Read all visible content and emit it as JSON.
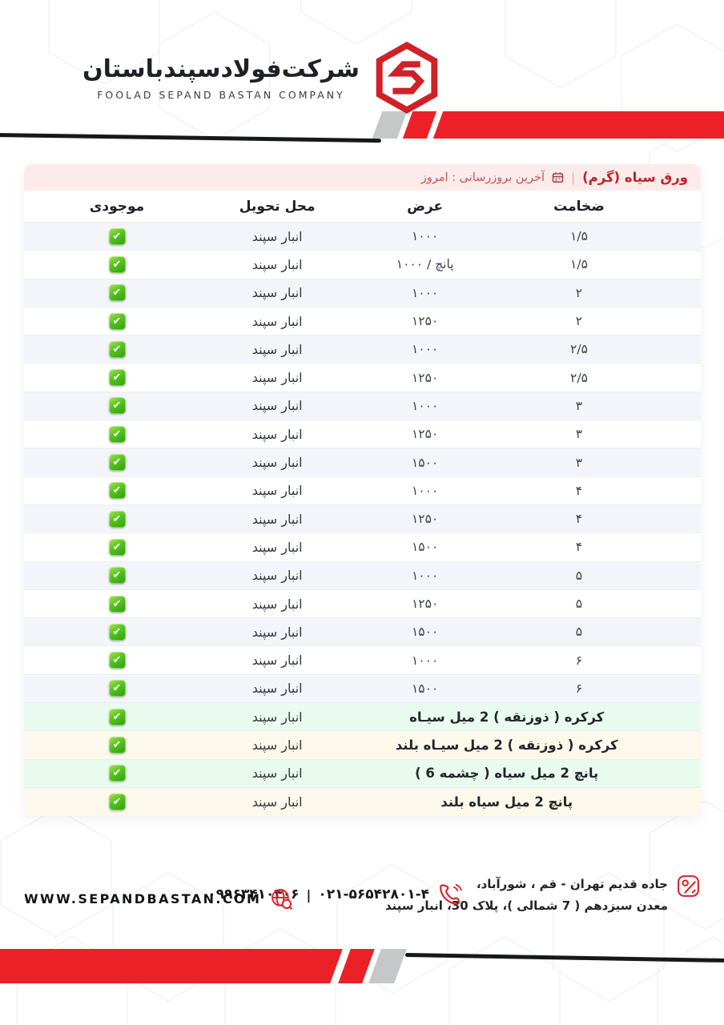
{
  "brand": {
    "company_name_fa": "شرکت‌فولادسپندباستان",
    "company_name_en": "FOOLAD SEPAND BASTAN COMPANY"
  },
  "price_table": {
    "title": "ورق سیاه (گرم)",
    "divider": "|",
    "last_update": "آخرین بروزرسانی : امروز",
    "columns": {
      "thickness": "ضخامت",
      "width": "عرض",
      "delivery": "محل تحویل",
      "stock": "موجودی"
    },
    "check_glyph": "✔",
    "rows": [
      {
        "thickness": "۱/۵",
        "width": "۱۰۰۰",
        "delivery": "انبار سپند",
        "in_stock": true
      },
      {
        "thickness": "۱/۵",
        "width": "پانچ / ۱۰۰۰",
        "delivery": "انبار سپند",
        "in_stock": true
      },
      {
        "thickness": "۲",
        "width": "۱۰۰۰",
        "delivery": "انبار سپند",
        "in_stock": true
      },
      {
        "thickness": "۲",
        "width": "۱۲۵۰",
        "delivery": "انبار سپند",
        "in_stock": true
      },
      {
        "thickness": "۲/۵",
        "width": "۱۰۰۰",
        "delivery": "انبار سپند",
        "in_stock": true
      },
      {
        "thickness": "۲/۵",
        "width": "۱۲۵۰",
        "delivery": "انبار سپند",
        "in_stock": true
      },
      {
        "thickness": "۳",
        "width": "۱۰۰۰",
        "delivery": "انبار سپند",
        "in_stock": true
      },
      {
        "thickness": "۳",
        "width": "۱۲۵۰",
        "delivery": "انبار سپند",
        "in_stock": true
      },
      {
        "thickness": "۳",
        "width": "۱۵۰۰",
        "delivery": "انبار سپند",
        "in_stock": true
      },
      {
        "thickness": "۴",
        "width": "۱۰۰۰",
        "delivery": "انبار سپند",
        "in_stock": true
      },
      {
        "thickness": "۴",
        "width": "۱۲۵۰",
        "delivery": "انبار سپند",
        "in_stock": true
      },
      {
        "thickness": "۴",
        "width": "۱۵۰۰",
        "delivery": "انبار سپند",
        "in_stock": true
      },
      {
        "thickness": "۵",
        "width": "۱۰۰۰",
        "delivery": "انبار سپند",
        "in_stock": true
      },
      {
        "thickness": "۵",
        "width": "۱۲۵۰",
        "delivery": "انبار سپند",
        "in_stock": true
      },
      {
        "thickness": "۵",
        "width": "۱۵۰۰",
        "delivery": "انبار سپند",
        "in_stock": true
      },
      {
        "thickness": "۶",
        "width": "۱۰۰۰",
        "delivery": "انبار سپند",
        "in_stock": true
      },
      {
        "thickness": "۶",
        "width": "۱۵۰۰",
        "delivery": "انبار سپند",
        "in_stock": true
      }
    ],
    "special_rows": [
      {
        "description": "کرکره ( ذوزنقه ) 2 میل سیـاه",
        "delivery": "انبار سپند",
        "in_stock": true,
        "tint": "green"
      },
      {
        "description": "کرکره ( ذوزنقه ) 2 میل سیـاه بلند",
        "delivery": "انبار سپند",
        "in_stock": true,
        "tint": "cream"
      },
      {
        "description": "پانچ 2 میل سیاه ( چشمه 6 )",
        "delivery": "انبار سپند",
        "in_stock": true,
        "tint": "green"
      },
      {
        "description": "پانچ 2 میل سیاه بلند",
        "delivery": "انبار سپند",
        "in_stock": true,
        "tint": "cream"
      }
    ]
  },
  "footer": {
    "address_line1": "جاده قدیم تهران - قم ، شورآباد،",
    "address_line2": "معدن سیزدهم ( 7 شمالی )، پلاک 30، انبار سپند",
    "phone_landline": "۰۲۱-۵۶۵۴۲۸۰۱-۴",
    "phone_divider": "|",
    "phone_mobile": "۰۹۹۶۳۴۱۰۴۰۶",
    "website": "WWW.SEPANDBASTAN.COM"
  },
  "colors": {
    "brand_red": "#cf2127",
    "banner_red": "#ec2127",
    "stripe_gray": "#c6c7c9",
    "banner_black": "#17181b",
    "title_bar_bg": "#fcebeb",
    "title_text": "#bf2228",
    "row_alt_bg": "#f3f5fa",
    "special_green_bg": "#e9fbee",
    "special_cream_bg": "#fdf8ec",
    "check_green": "#45b712"
  }
}
